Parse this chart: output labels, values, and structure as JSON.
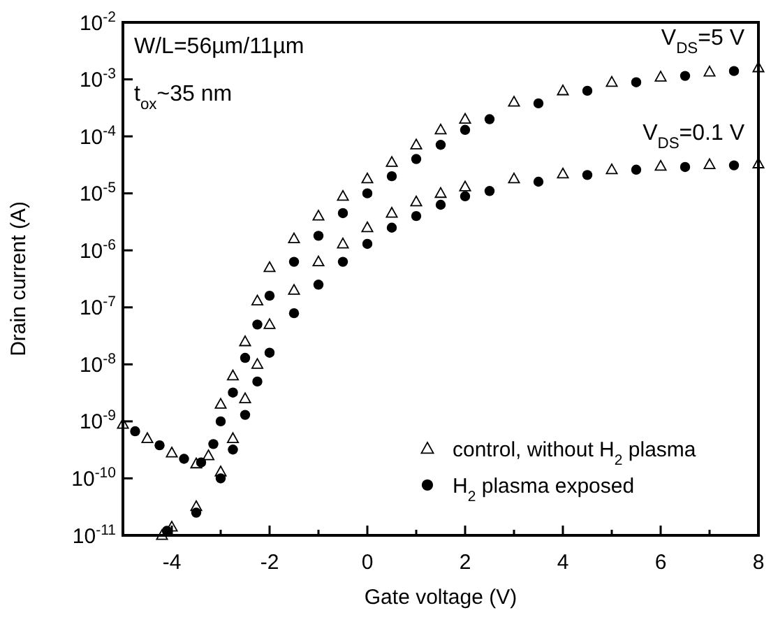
{
  "chart_data": {
    "type": "scatter",
    "xlabel": "Gate voltage (V)",
    "ylabel": "Drain current (A)",
    "log": "y",
    "grid": false,
    "legend": "bottom right",
    "xlim": [
      -5,
      8
    ],
    "xticks": [
      {
        "value": -5,
        "label": null
      },
      -4,
      {
        "value": -3,
        "label": null
      },
      -2,
      {
        "value": -1,
        "label": null
      },
      0,
      {
        "value": 1,
        "label": null
      },
      2,
      {
        "value": 3,
        "label": null
      },
      4,
      {
        "value": 5,
        "label": null
      },
      6,
      {
        "value": 7,
        "label": null
      },
      8
    ],
    "ylim": [
      1e-11,
      0.01
    ],
    "yticks": [
      {
        "value": 1e-11,
        "label": "10$^{-11}$"
      },
      {
        "value": 1e-10,
        "label": "10$^{-10}$"
      },
      {
        "value": 1e-09,
        "label": "10$^{-9}$"
      },
      {
        "value": 1e-08,
        "label": "10$^{-8}$"
      },
      {
        "value": 1e-07,
        "label": "10$^{-7}$"
      },
      {
        "value": 1e-06,
        "label": "10$^{-6}$"
      },
      {
        "value": 1e-05,
        "label": "10$^{-5}$"
      },
      {
        "value": 0.0001,
        "label": "10$^{-4}$"
      },
      {
        "value": 0.001,
        "label": "10$^{-3}$"
      },
      {
        "value": 0.01,
        "label": "10$^{-2}$"
      }
    ],
    "annotations": [
      "W/L=56µm/11µm",
      "t$_{ox}$~35 nm",
      "V$_{DS}$=5 V",
      "V$_{DS}$=0.1 V"
    ],
    "series": [
      {
        "name": "control, without H$_{2}$ plasma",
        "color": "#000000",
        "marker": "triangle",
        "x": [
          -5,
          -4.5,
          -4,
          -3.5,
          -3.25,
          -3,
          -2.75,
          -2.5,
          -2.25,
          -2,
          -1.5,
          -1,
          -0.5,
          0,
          0.5,
          1,
          1.5,
          2,
          3,
          4,
          5,
          6,
          7,
          8
        ],
        "values": [
          8.9e-10,
          5e-10,
          2.8e-10,
          1.8e-10,
          2.5e-10,
          2e-09,
          6.3e-09,
          2.5e-08,
          1.3e-07,
          5e-07,
          1.6e-06,
          4e-06,
          8.9e-06,
          1.8e-05,
          3.5e-05,
          7.1e-05,
          0.00013,
          0.0002,
          0.0004,
          0.00063,
          0.00089,
          0.0011,
          0.00135,
          0.0016
        ]
      },
      {
        "color": "#000000",
        "marker": "triangle",
        "x": [
          -4.2,
          -4,
          -3.5,
          -3,
          -2.75,
          -2.5,
          -2.25,
          -2,
          -1.5,
          -1,
          -0.5,
          0,
          0.5,
          1,
          1.5,
          2,
          3,
          4,
          5,
          6,
          7,
          8
        ],
        "values": [
          1e-11,
          1.4e-11,
          3.2e-11,
          1.3e-10,
          5e-10,
          2.5e-09,
          1e-08,
          5e-08,
          2e-07,
          6.3e-07,
          1.3e-06,
          2.5e-06,
          4.5e-06,
          7.1e-06,
          1e-05,
          1.3e-05,
          1.8e-05,
          2.2e-05,
          2.6e-05,
          3e-05,
          3.2e-05,
          3.3e-05
        ]
      },
      {
        "name": "H$_{2}$ plasma exposed",
        "color": "#000000",
        "marker": "circle",
        "x": [
          -4.75,
          -4.25,
          -3.75,
          -3.4,
          -3.15,
          -3,
          -2.75,
          -2.5,
          -2.25,
          -2,
          -1.5,
          -1,
          -0.5,
          0,
          0.5,
          1,
          1.5,
          2,
          2.5,
          3.5,
          4.5,
          5.5,
          6.5,
          7.5
        ],
        "values": [
          6.7e-10,
          3.8e-10,
          2.2e-10,
          1.9e-10,
          4e-10,
          1e-09,
          3.2e-09,
          1.3e-08,
          5e-08,
          1.6e-07,
          6.3e-07,
          1.8e-06,
          4.5e-06,
          1e-05,
          2e-05,
          4e-05,
          7.1e-05,
          0.00013,
          0.0002,
          0.00038,
          0.00063,
          0.00089,
          0.00115,
          0.0014
        ]
      },
      {
        "color": "#000000",
        "marker": "circle",
        "x": [
          -4.1,
          -3.5,
          -3,
          -2.75,
          -2.5,
          -2.25,
          -2,
          -1.5,
          -1,
          -0.5,
          0,
          0.5,
          1,
          1.5,
          2,
          2.5,
          3.5,
          4.5,
          5.5,
          6.5,
          7.5
        ],
        "values": [
          1.2e-11,
          2.5e-11,
          1e-10,
          3.2e-10,
          1.3e-09,
          5e-09,
          1.6e-08,
          7.9e-08,
          2.5e-07,
          6.3e-07,
          1.3e-06,
          2.5e-06,
          4e-06,
          6.3e-06,
          8.9e-06,
          1.1e-05,
          1.6e-05,
          2.1e-05,
          2.6e-05,
          2.9e-05,
          3.1e-05
        ]
      }
    ]
  }
}
